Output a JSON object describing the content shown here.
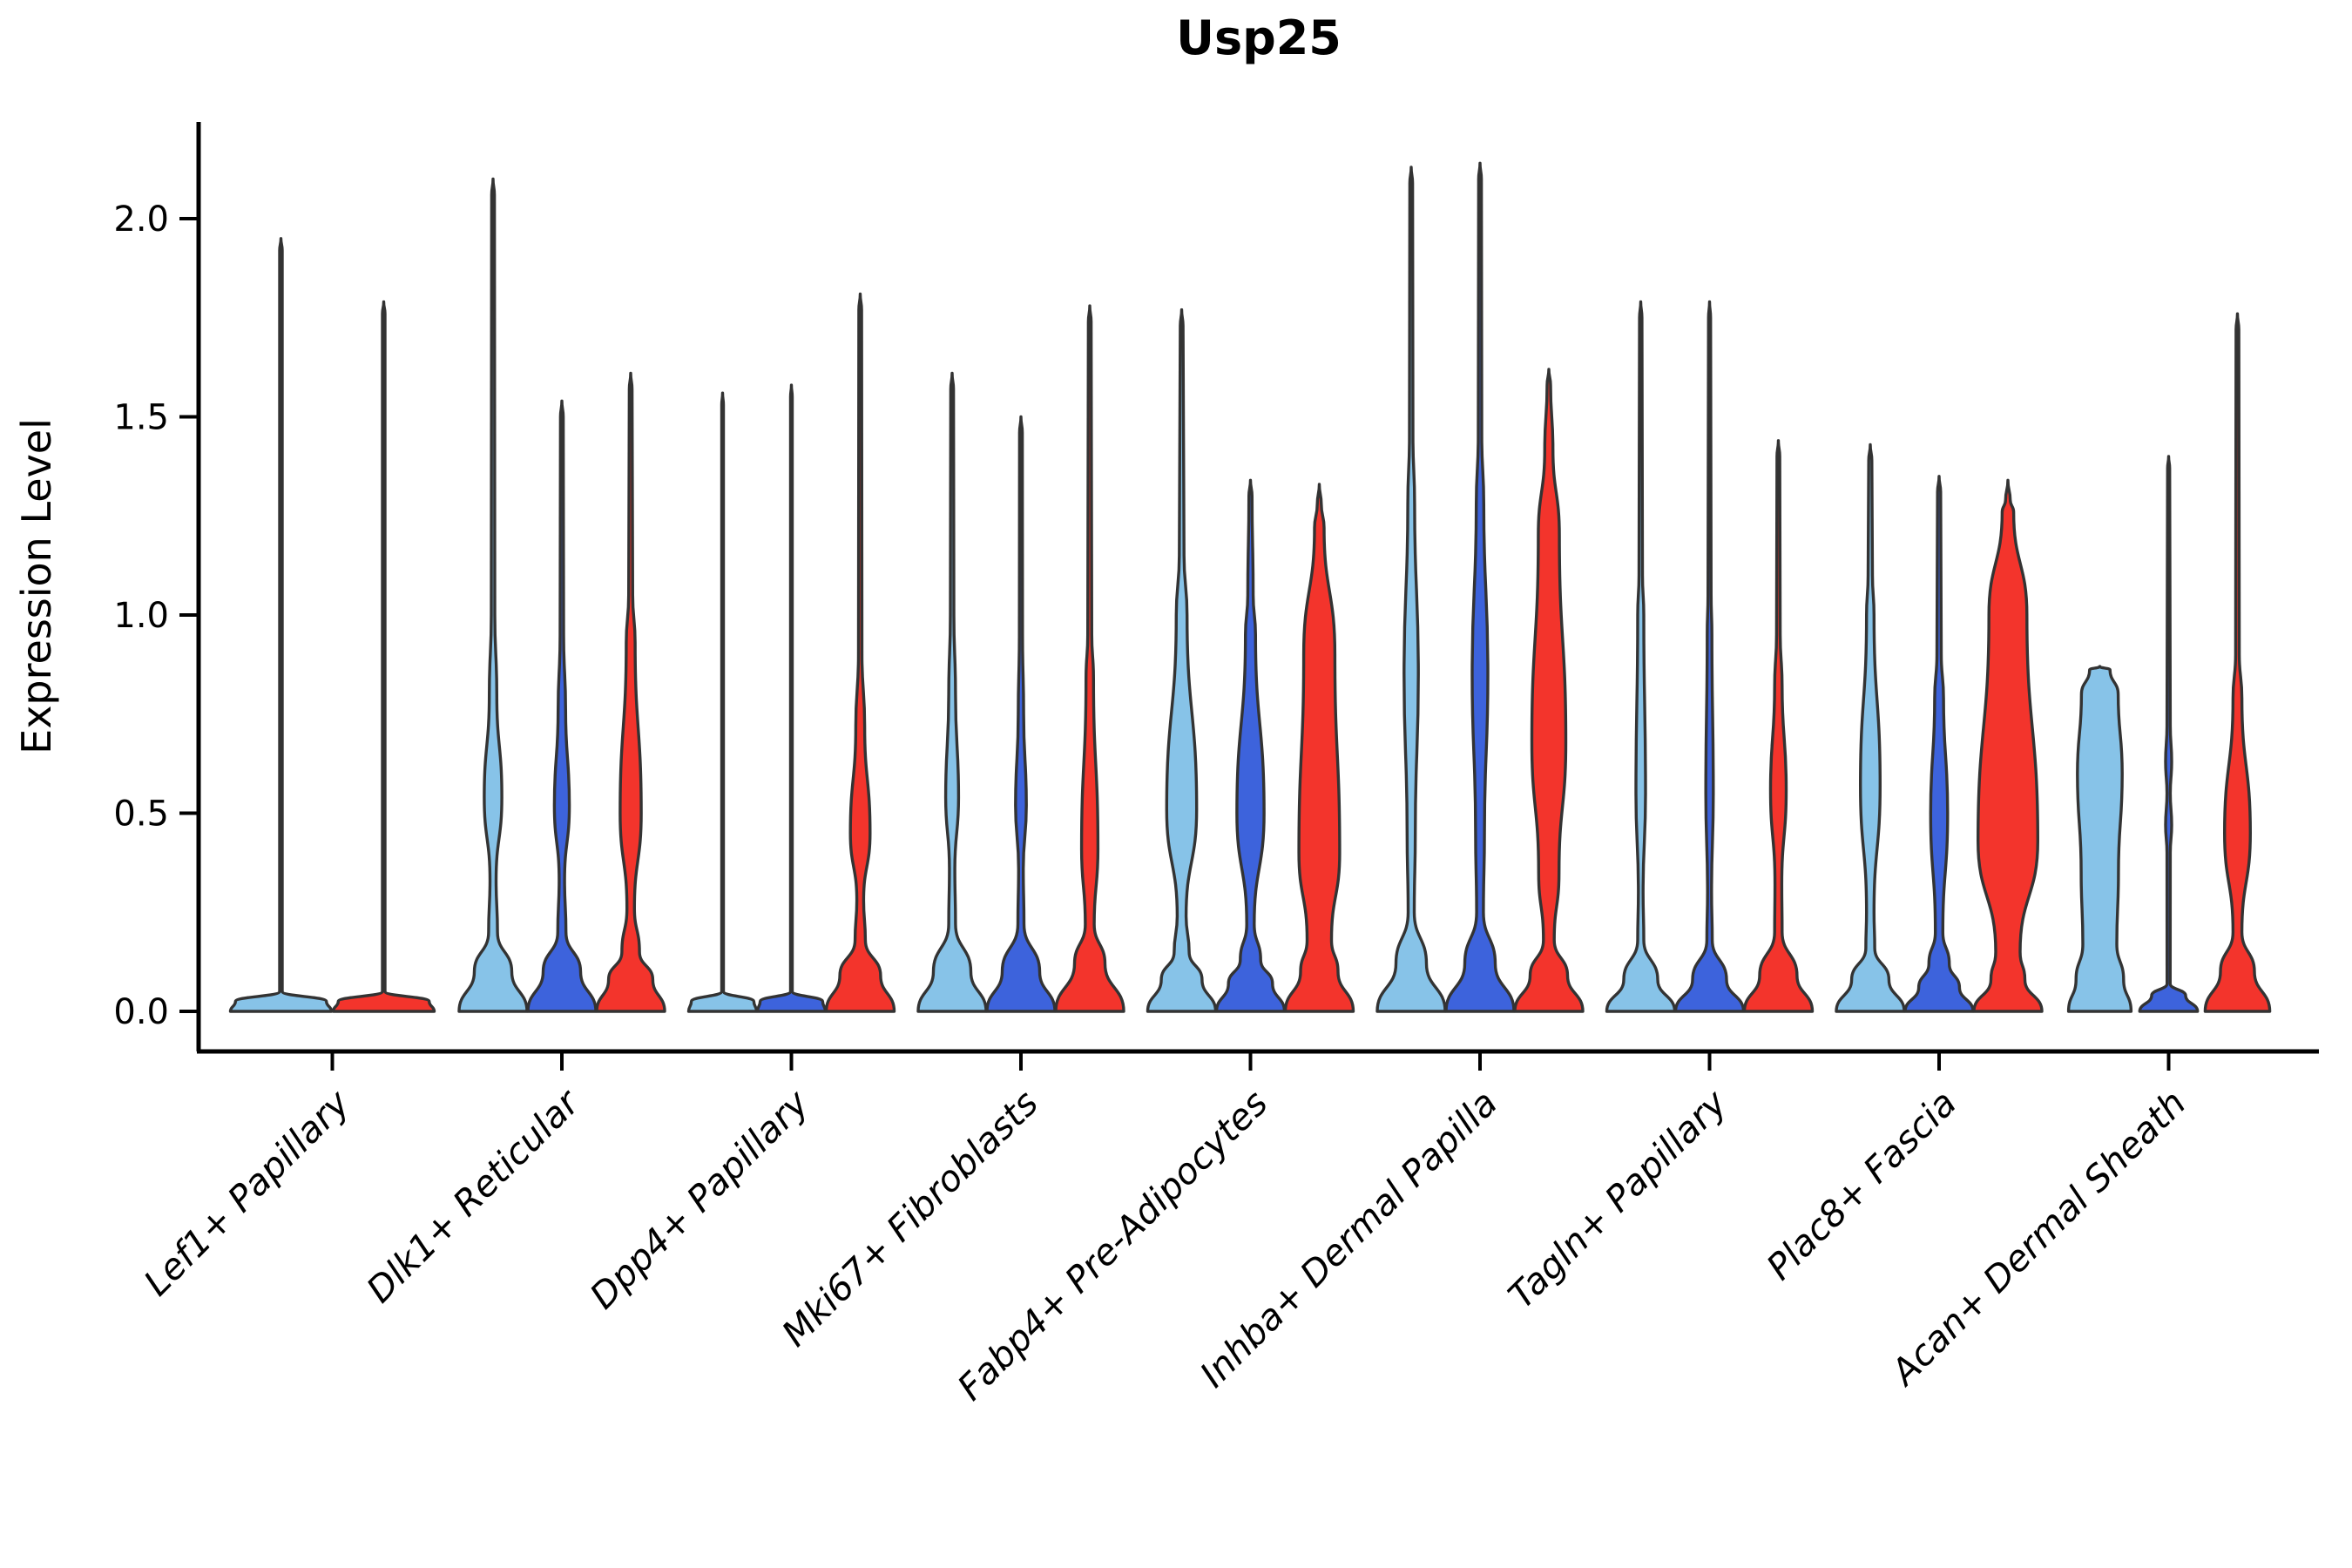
{
  "chart_data": {
    "type": "violin",
    "title": "Usp25",
    "xlabel": "",
    "ylabel": "Expression Level",
    "ylim": [
      -0.1,
      2.24
    ],
    "yticks": [
      0.0,
      0.5,
      1.0,
      1.5,
      2.0
    ],
    "ytick_labels": [
      "0.0",
      "0.5",
      "1.0",
      "1.5",
      "2.0"
    ],
    "grid": false,
    "legend": "none",
    "categories": [
      "Lef1+ Papillary",
      "Dlk1+ Reticular",
      "Dpp4+ Papillary",
      "Mki67+ Fibroblasts",
      "Fabp4+ Pre-Adipocytes",
      "Inhba+ Dermal Papilla",
      "Tagln+ Papillary",
      "Plac8+ Fascia",
      "Acan+ Dermal Sheath"
    ],
    "series": [
      {
        "name": "light-blue",
        "color": "#87C3E8",
        "max_expression": [
          1.95,
          2.1,
          1.56,
          1.61,
          1.77,
          2.13,
          1.79,
          1.43,
          0.87
        ]
      },
      {
        "name": "royal-blue",
        "color": "#3D63DC",
        "max_expression": [
          null,
          1.54,
          1.58,
          1.5,
          1.34,
          2.14,
          1.79,
          1.35,
          1.4
        ]
      },
      {
        "name": "red",
        "color": "#F3342C",
        "max_expression": [
          1.79,
          1.61,
          1.81,
          1.78,
          1.33,
          1.62,
          1.44,
          1.34,
          1.76
        ]
      }
    ],
    "outline_color": "#333333",
    "axis_color": "#000000",
    "violins": [
      {
        "cat": 0,
        "ser": 0,
        "wide": true,
        "profile": [
          [
            1.95,
            0
          ],
          [
            1.92,
            0.026
          ],
          [
            0.05,
            0.026
          ],
          [
            0.025,
            0.9
          ],
          [
            0,
            1
          ]
        ]
      },
      {
        "cat": 0,
        "ser": 2,
        "wide": true,
        "profile": [
          [
            1.79,
            0
          ],
          [
            1.76,
            0.026
          ],
          [
            0.05,
            0.026
          ],
          [
            0.025,
            0.9
          ],
          [
            0,
            1
          ]
        ]
      },
      {
        "cat": 1,
        "ser": 0,
        "profile": [
          [
            2.1,
            0
          ],
          [
            2.06,
            0.04
          ],
          [
            1.0,
            0.05
          ],
          [
            0.8,
            0.11
          ],
          [
            0.54,
            0.26
          ],
          [
            0.33,
            0.09
          ],
          [
            0.2,
            0.13
          ],
          [
            0.1,
            0.55
          ],
          [
            0,
            1
          ]
        ]
      },
      {
        "cat": 1,
        "ser": 1,
        "profile": [
          [
            1.54,
            0
          ],
          [
            1.5,
            0.04
          ],
          [
            0.95,
            0.05
          ],
          [
            0.76,
            0.11
          ],
          [
            0.52,
            0.22
          ],
          [
            0.33,
            0.08
          ],
          [
            0.2,
            0.12
          ],
          [
            0.1,
            0.55
          ],
          [
            0,
            1
          ]
        ]
      },
      {
        "cat": 1,
        "ser": 2,
        "profile": [
          [
            1.61,
            0
          ],
          [
            1.57,
            0.04
          ],
          [
            1.05,
            0.06
          ],
          [
            0.93,
            0.13
          ],
          [
            0.5,
            0.31
          ],
          [
            0.26,
            0.11
          ],
          [
            0.15,
            0.26
          ],
          [
            0.08,
            0.65
          ],
          [
            0,
            1
          ]
        ]
      },
      {
        "cat": 2,
        "ser": 0,
        "profile": [
          [
            1.56,
            0
          ],
          [
            1.53,
            0.026
          ],
          [
            0.05,
            0.026
          ],
          [
            0.025,
            0.92
          ],
          [
            0,
            1
          ]
        ]
      },
      {
        "cat": 2,
        "ser": 1,
        "profile": [
          [
            1.58,
            0
          ],
          [
            1.55,
            0.026
          ],
          [
            0.05,
            0.026
          ],
          [
            0.025,
            0.92
          ],
          [
            0,
            1
          ]
        ]
      },
      {
        "cat": 2,
        "ser": 2,
        "profile": [
          [
            1.81,
            0
          ],
          [
            1.77,
            0.04
          ],
          [
            0.9,
            0.05
          ],
          [
            0.72,
            0.13
          ],
          [
            0.45,
            0.29
          ],
          [
            0.28,
            0.1
          ],
          [
            0.18,
            0.15
          ],
          [
            0.09,
            0.6
          ],
          [
            0,
            1
          ]
        ]
      },
      {
        "cat": 3,
        "ser": 0,
        "profile": [
          [
            1.61,
            0
          ],
          [
            1.57,
            0.04
          ],
          [
            1.0,
            0.05
          ],
          [
            0.8,
            0.1
          ],
          [
            0.54,
            0.19
          ],
          [
            0.36,
            0.08
          ],
          [
            0.22,
            0.1
          ],
          [
            0.1,
            0.55
          ],
          [
            0,
            1
          ]
        ]
      },
      {
        "cat": 3,
        "ser": 1,
        "profile": [
          [
            1.5,
            0
          ],
          [
            1.46,
            0.04
          ],
          [
            0.95,
            0.045
          ],
          [
            0.75,
            0.08
          ],
          [
            0.52,
            0.16
          ],
          [
            0.36,
            0.07
          ],
          [
            0.22,
            0.09
          ],
          [
            0.1,
            0.55
          ],
          [
            0,
            1
          ]
        ]
      },
      {
        "cat": 3,
        "ser": 2,
        "profile": [
          [
            1.78,
            0
          ],
          [
            1.74,
            0.04
          ],
          [
            0.95,
            0.06
          ],
          [
            0.84,
            0.11
          ],
          [
            0.41,
            0.24
          ],
          [
            0.22,
            0.13
          ],
          [
            0.12,
            0.45
          ],
          [
            0,
            1
          ]
        ]
      },
      {
        "cat": 4,
        "ser": 0,
        "profile": [
          [
            1.77,
            0
          ],
          [
            1.73,
            0.04
          ],
          [
            1.15,
            0.07
          ],
          [
            1.0,
            0.16
          ],
          [
            0.51,
            0.44
          ],
          [
            0.24,
            0.13
          ],
          [
            0.15,
            0.22
          ],
          [
            0.08,
            0.6
          ],
          [
            0,
            1
          ]
        ]
      },
      {
        "cat": 4,
        "ser": 1,
        "profile": [
          [
            1.34,
            0
          ],
          [
            1.3,
            0.045
          ],
          [
            1.05,
            0.08
          ],
          [
            0.95,
            0.15
          ],
          [
            0.5,
            0.4
          ],
          [
            0.22,
            0.11
          ],
          [
            0.13,
            0.3
          ],
          [
            0.07,
            0.65
          ],
          [
            0,
            1
          ]
        ]
      },
      {
        "cat": 4,
        "ser": 2,
        "profile": [
          [
            1.33,
            0
          ],
          [
            1.28,
            0.06
          ],
          [
            1.22,
            0.14
          ],
          [
            0.9,
            0.46
          ],
          [
            0.4,
            0.6
          ],
          [
            0.18,
            0.36
          ],
          [
            0.1,
            0.55
          ],
          [
            0,
            1
          ]
        ]
      },
      {
        "cat": 5,
        "ser": 0,
        "profile": [
          [
            2.13,
            0
          ],
          [
            2.09,
            0.04
          ],
          [
            1.45,
            0.05
          ],
          [
            1.28,
            0.1
          ],
          [
            0.85,
            0.21
          ],
          [
            0.45,
            0.12
          ],
          [
            0.25,
            0.09
          ],
          [
            0.12,
            0.45
          ],
          [
            0,
            1
          ]
        ]
      },
      {
        "cat": 5,
        "ser": 1,
        "profile": [
          [
            2.14,
            0
          ],
          [
            2.1,
            0.04
          ],
          [
            1.45,
            0.05
          ],
          [
            1.28,
            0.11
          ],
          [
            0.85,
            0.23
          ],
          [
            0.45,
            0.13
          ],
          [
            0.25,
            0.1
          ],
          [
            0.12,
            0.45
          ],
          [
            0,
            1
          ]
        ]
      },
      {
        "cat": 5,
        "ser": 2,
        "profile": [
          [
            1.62,
            0
          ],
          [
            1.58,
            0.05
          ],
          [
            1.42,
            0.12
          ],
          [
            1.2,
            0.31
          ],
          [
            0.68,
            0.5
          ],
          [
            0.35,
            0.3
          ],
          [
            0.18,
            0.16
          ],
          [
            0.09,
            0.55
          ],
          [
            0,
            1
          ]
        ]
      },
      {
        "cat": 6,
        "ser": 0,
        "profile": [
          [
            1.79,
            0
          ],
          [
            1.75,
            0.035
          ],
          [
            1.1,
            0.05
          ],
          [
            1.0,
            0.09
          ],
          [
            0.55,
            0.14
          ],
          [
            0.3,
            0.07
          ],
          [
            0.18,
            0.09
          ],
          [
            0.08,
            0.5
          ],
          [
            0,
            1
          ]
        ]
      },
      {
        "cat": 6,
        "ser": 1,
        "profile": [
          [
            1.79,
            0
          ],
          [
            1.75,
            0.03
          ],
          [
            1.05,
            0.045
          ],
          [
            0.95,
            0.07
          ],
          [
            0.55,
            0.11
          ],
          [
            0.3,
            0.06
          ],
          [
            0.18,
            0.08
          ],
          [
            0.08,
            0.5
          ],
          [
            0,
            1
          ]
        ]
      },
      {
        "cat": 6,
        "ser": 2,
        "profile": [
          [
            1.44,
            0
          ],
          [
            1.4,
            0.04
          ],
          [
            0.95,
            0.055
          ],
          [
            0.82,
            0.11
          ],
          [
            0.56,
            0.23
          ],
          [
            0.32,
            0.1
          ],
          [
            0.2,
            0.11
          ],
          [
            0.09,
            0.55
          ],
          [
            0,
            1
          ]
        ]
      },
      {
        "cat": 7,
        "ser": 0,
        "profile": [
          [
            1.43,
            0
          ],
          [
            1.39,
            0.045
          ],
          [
            1.1,
            0.065
          ],
          [
            1.0,
            0.11
          ],
          [
            0.57,
            0.29
          ],
          [
            0.25,
            0.11
          ],
          [
            0.16,
            0.13
          ],
          [
            0.08,
            0.55
          ],
          [
            0,
            1
          ]
        ]
      },
      {
        "cat": 7,
        "ser": 1,
        "profile": [
          [
            1.35,
            0
          ],
          [
            1.31,
            0.045
          ],
          [
            0.9,
            0.065
          ],
          [
            0.79,
            0.13
          ],
          [
            0.5,
            0.25
          ],
          [
            0.2,
            0.11
          ],
          [
            0.12,
            0.3
          ],
          [
            0.06,
            0.6
          ],
          [
            0,
            1
          ]
        ]
      },
      {
        "cat": 7,
        "ser": 2,
        "profile": [
          [
            1.34,
            0
          ],
          [
            1.29,
            0.07
          ],
          [
            1.26,
            0.17
          ],
          [
            1.0,
            0.56
          ],
          [
            0.43,
            0.88
          ],
          [
            0.15,
            0.36
          ],
          [
            0.08,
            0.5
          ],
          [
            0,
            1
          ]
        ]
      },
      {
        "cat": 8,
        "ser": 0,
        "profile": [
          [
            0.87,
            0
          ],
          [
            0.862,
            0.3
          ],
          [
            0.8,
            0.54
          ],
          [
            0.6,
            0.66
          ],
          [
            0.35,
            0.55
          ],
          [
            0.17,
            0.5
          ],
          [
            0.08,
            0.7
          ],
          [
            0,
            0.92
          ]
        ]
      },
      {
        "cat": 8,
        "ser": 1,
        "profile": [
          [
            1.4,
            0
          ],
          [
            1.37,
            0.03
          ],
          [
            0.72,
            0.05
          ],
          [
            0.63,
            0.09
          ],
          [
            0.55,
            0.05
          ],
          [
            0.47,
            0.09
          ],
          [
            0.4,
            0.05
          ],
          [
            0.07,
            0.045
          ],
          [
            0.04,
            0.5
          ],
          [
            0,
            0.85
          ]
        ]
      },
      {
        "cat": 8,
        "ser": 2,
        "profile": [
          [
            1.76,
            0
          ],
          [
            1.72,
            0.04
          ],
          [
            0.9,
            0.055
          ],
          [
            0.79,
            0.13
          ],
          [
            0.45,
            0.38
          ],
          [
            0.2,
            0.13
          ],
          [
            0.1,
            0.5
          ],
          [
            0,
            0.95
          ]
        ]
      }
    ]
  }
}
